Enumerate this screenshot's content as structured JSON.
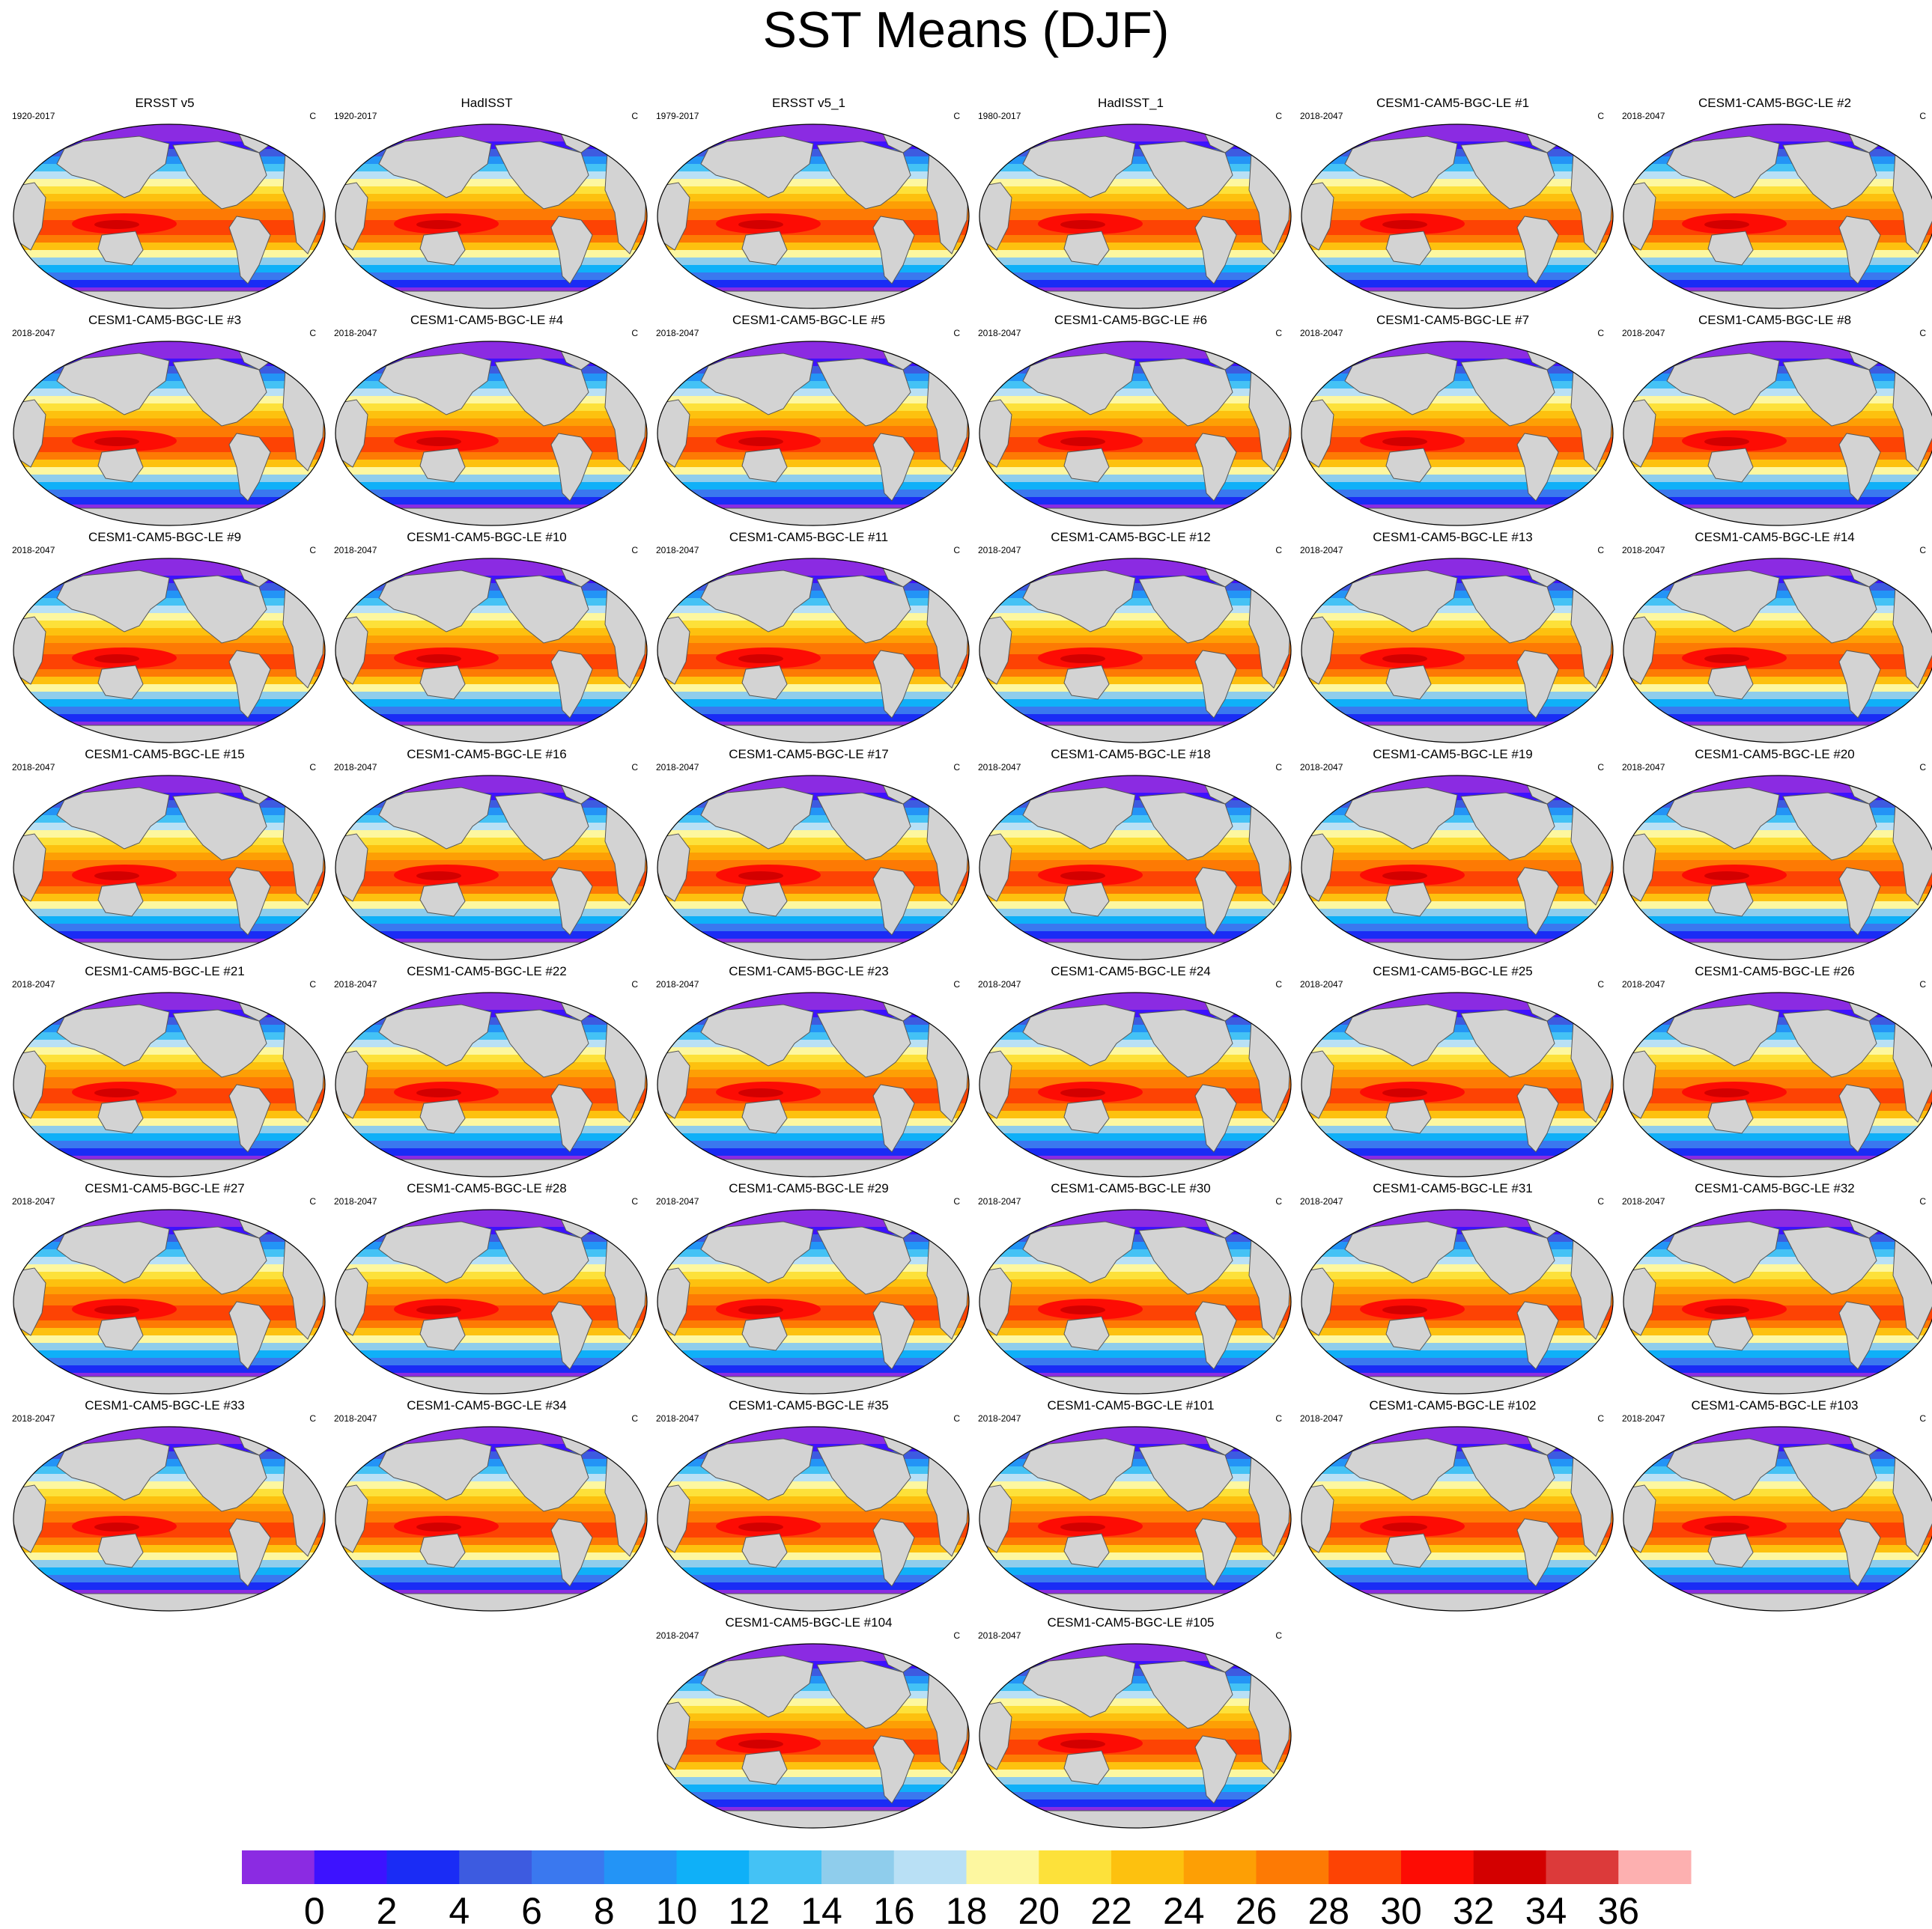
{
  "title": "SST Means (DJF)",
  "panels": [
    {
      "title": "ERSST v5",
      "period": "1920-2017",
      "units": "C"
    },
    {
      "title": "HadISST",
      "period": "1920-2017",
      "units": "C"
    },
    {
      "title": "ERSST v5_1",
      "period": "1979-2017",
      "units": "C"
    },
    {
      "title": "HadISST_1",
      "period": "1980-2017",
      "units": "C"
    },
    {
      "title": "CESM1-CAM5-BGC-LE #1",
      "period": "2018-2047",
      "units": "C"
    },
    {
      "title": "CESM1-CAM5-BGC-LE #2",
      "period": "2018-2047",
      "units": "C"
    },
    {
      "title": "CESM1-CAM5-BGC-LE #3",
      "period": "2018-2047",
      "units": "C"
    },
    {
      "title": "CESM1-CAM5-BGC-LE #4",
      "period": "2018-2047",
      "units": "C"
    },
    {
      "title": "CESM1-CAM5-BGC-LE #5",
      "period": "2018-2047",
      "units": "C"
    },
    {
      "title": "CESM1-CAM5-BGC-LE #6",
      "period": "2018-2047",
      "units": "C"
    },
    {
      "title": "CESM1-CAM5-BGC-LE #7",
      "period": "2018-2047",
      "units": "C"
    },
    {
      "title": "CESM1-CAM5-BGC-LE #8",
      "period": "2018-2047",
      "units": "C"
    },
    {
      "title": "CESM1-CAM5-BGC-LE #9",
      "period": "2018-2047",
      "units": "C"
    },
    {
      "title": "CESM1-CAM5-BGC-LE #10",
      "period": "2018-2047",
      "units": "C"
    },
    {
      "title": "CESM1-CAM5-BGC-LE #11",
      "period": "2018-2047",
      "units": "C"
    },
    {
      "title": "CESM1-CAM5-BGC-LE #12",
      "period": "2018-2047",
      "units": "C"
    },
    {
      "title": "CESM1-CAM5-BGC-LE #13",
      "period": "2018-2047",
      "units": "C"
    },
    {
      "title": "CESM1-CAM5-BGC-LE #14",
      "period": "2018-2047",
      "units": "C"
    },
    {
      "title": "CESM1-CAM5-BGC-LE #15",
      "period": "2018-2047",
      "units": "C"
    },
    {
      "title": "CESM1-CAM5-BGC-LE #16",
      "period": "2018-2047",
      "units": "C"
    },
    {
      "title": "CESM1-CAM5-BGC-LE #17",
      "period": "2018-2047",
      "units": "C"
    },
    {
      "title": "CESM1-CAM5-BGC-LE #18",
      "period": "2018-2047",
      "units": "C"
    },
    {
      "title": "CESM1-CAM5-BGC-LE #19",
      "period": "2018-2047",
      "units": "C"
    },
    {
      "title": "CESM1-CAM5-BGC-LE #20",
      "period": "2018-2047",
      "units": "C"
    },
    {
      "title": "CESM1-CAM5-BGC-LE #21",
      "period": "2018-2047",
      "units": "C"
    },
    {
      "title": "CESM1-CAM5-BGC-LE #22",
      "period": "2018-2047",
      "units": "C"
    },
    {
      "title": "CESM1-CAM5-BGC-LE #23",
      "period": "2018-2047",
      "units": "C"
    },
    {
      "title": "CESM1-CAM5-BGC-LE #24",
      "period": "2018-2047",
      "units": "C"
    },
    {
      "title": "CESM1-CAM5-BGC-LE #25",
      "period": "2018-2047",
      "units": "C"
    },
    {
      "title": "CESM1-CAM5-BGC-LE #26",
      "period": "2018-2047",
      "units": "C"
    },
    {
      "title": "CESM1-CAM5-BGC-LE #27",
      "period": "2018-2047",
      "units": "C"
    },
    {
      "title": "CESM1-CAM5-BGC-LE #28",
      "period": "2018-2047",
      "units": "C"
    },
    {
      "title": "CESM1-CAM5-BGC-LE #29",
      "period": "2018-2047",
      "units": "C"
    },
    {
      "title": "CESM1-CAM5-BGC-LE #30",
      "period": "2018-2047",
      "units": "C"
    },
    {
      "title": "CESM1-CAM5-BGC-LE #31",
      "period": "2018-2047",
      "units": "C"
    },
    {
      "title": "CESM1-CAM5-BGC-LE #32",
      "period": "2018-2047",
      "units": "C"
    },
    {
      "title": "CESM1-CAM5-BGC-LE #33",
      "period": "2018-2047",
      "units": "C"
    },
    {
      "title": "CESM1-CAM5-BGC-LE #34",
      "period": "2018-2047",
      "units": "C"
    },
    {
      "title": "CESM1-CAM5-BGC-LE #35",
      "period": "2018-2047",
      "units": "C"
    },
    {
      "title": "CESM1-CAM5-BGC-LE #101",
      "period": "2018-2047",
      "units": "C"
    },
    {
      "title": "CESM1-CAM5-BGC-LE #102",
      "period": "2018-2047",
      "units": "C"
    },
    {
      "title": "CESM1-CAM5-BGC-LE #103",
      "period": "2018-2047",
      "units": "C"
    },
    {
      "title": "CESM1-CAM5-BGC-LE #104",
      "period": "2018-2047",
      "units": "C"
    },
    {
      "title": "CESM1-CAM5-BGC-LE #105",
      "period": "2018-2047",
      "units": "C"
    }
  ],
  "colorbar": {
    "ticks": [
      "0",
      "2",
      "4",
      "6",
      "8",
      "10",
      "12",
      "14",
      "16",
      "18",
      "20",
      "22",
      "24",
      "26",
      "28",
      "30",
      "32",
      "34",
      "36"
    ],
    "colors": [
      "#8b2be2",
      "#3d12ff",
      "#1a2cf5",
      "#3d5be0",
      "#3a78ef",
      "#2394f6",
      "#0fb0f8",
      "#44c2f5",
      "#8fcdec",
      "#b9e0f5",
      "#fdf7a0",
      "#fde13a",
      "#fdc10f",
      "#fd9f05",
      "#fd7a04",
      "#fd4304",
      "#fd0c04",
      "#d30000",
      "#dc3a3a",
      "#fdb0b0"
    ]
  },
  "colors": {
    "land": "#d3d3d3",
    "coast": "#555555",
    "sea_ice": "#ffffff"
  }
}
